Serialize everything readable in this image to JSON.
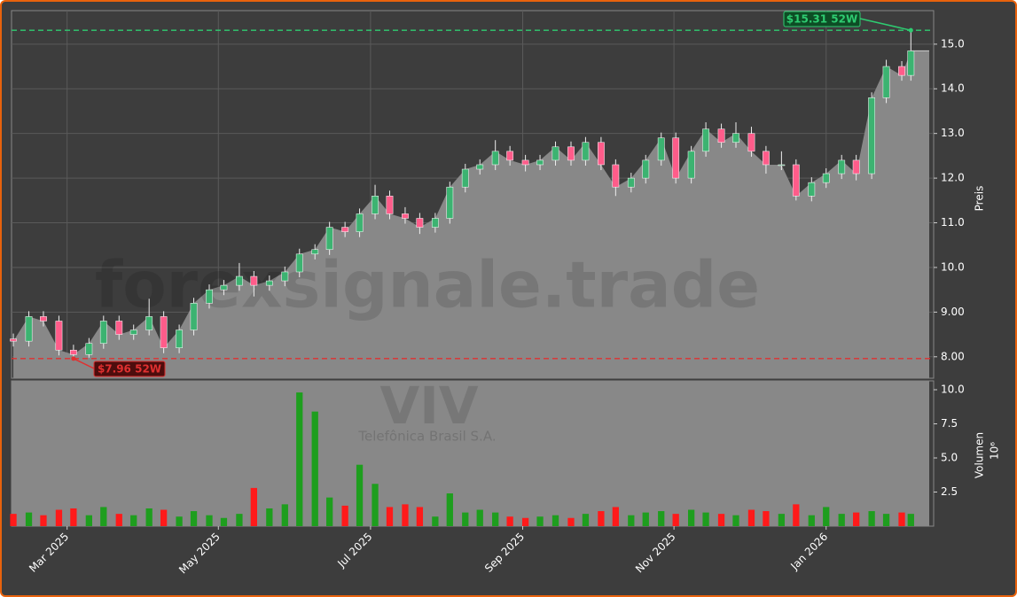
{
  "chart_data": {
    "type": "candlestick",
    "watermark": "forexsignale.trade",
    "symbol": "VIV",
    "company": "Telefônica Brasil S.A.",
    "y_label": "Preis",
    "volume_label": "Volumen",
    "volume_scale_label": "10⁶",
    "x": [
      2025.108,
      2025.125,
      2025.141,
      2025.158,
      2025.174,
      2025.191,
      2025.207,
      2025.224,
      2025.24,
      2025.257,
      2025.273,
      2025.29,
      2025.306,
      2025.323,
      2025.339,
      2025.356,
      2025.372,
      2025.389,
      2025.406,
      2025.422,
      2025.439,
      2025.455,
      2025.472,
      2025.488,
      2025.505,
      2025.521,
      2025.538,
      2025.554,
      2025.571,
      2025.587,
      2025.604,
      2025.62,
      2025.637,
      2025.653,
      2025.67,
      2025.686,
      2025.703,
      2025.72,
      2025.736,
      2025.753,
      2025.769,
      2025.786,
      2025.802,
      2025.819,
      2025.835,
      2025.852,
      2025.868,
      2025.885,
      2025.901,
      2025.918,
      2025.934,
      2025.951,
      2025.967,
      2025.984,
      2026.0,
      2026.017,
      2026.033,
      2026.05,
      2026.066,
      2026.083,
      2026.093
    ],
    "open": [
      8.4,
      8.35,
      8.9,
      8.8,
      8.15,
      8.05,
      8.3,
      8.8,
      8.5,
      8.6,
      8.9,
      8.2,
      8.6,
      9.2,
      9.5,
      9.6,
      9.8,
      9.6,
      9.7,
      9.9,
      10.3,
      10.4,
      10.9,
      10.8,
      11.2,
      11.6,
      11.2,
      11.1,
      10.9,
      11.1,
      11.8,
      12.2,
      12.3,
      12.6,
      12.4,
      12.3,
      12.4,
      12.7,
      12.4,
      12.8,
      12.3,
      11.8,
      12.0,
      12.4,
      12.9,
      12.0,
      12.6,
      13.1,
      12.8,
      13.0,
      12.6,
      12.3,
      12.3,
      11.6,
      11.9,
      12.1,
      12.4,
      12.1,
      13.8,
      14.5,
      14.3
    ],
    "high": [
      8.52,
      9.02,
      9.02,
      8.92,
      8.27,
      8.42,
      8.92,
      8.92,
      8.72,
      9.3,
      9.02,
      8.72,
      9.32,
      9.62,
      9.72,
      10.1,
      9.92,
      9.82,
      10.02,
      10.42,
      10.52,
      11.02,
      11.02,
      11.32,
      11.85,
      11.72,
      11.35,
      11.22,
      11.22,
      11.92,
      12.32,
      12.42,
      12.85,
      12.72,
      12.52,
      12.52,
      12.82,
      12.82,
      12.92,
      12.92,
      12.42,
      12.12,
      12.52,
      13.02,
      13.02,
      12.72,
      13.25,
      13.22,
      13.25,
      13.15,
      12.72,
      12.6,
      12.42,
      12.02,
      12.22,
      12.52,
      12.52,
      13.92,
      14.65,
      14.62,
      15.31
    ],
    "low": [
      8.23,
      8.23,
      8.68,
      8.03,
      7.96,
      7.98,
      8.18,
      8.38,
      8.38,
      8.48,
      8.08,
      8.08,
      8.48,
      9.08,
      9.38,
      9.48,
      9.35,
      9.48,
      9.58,
      9.78,
      10.18,
      10.28,
      10.68,
      10.68,
      11.08,
      11.08,
      10.98,
      10.75,
      10.78,
      10.98,
      11.68,
      12.08,
      12.18,
      12.28,
      12.15,
      12.18,
      12.28,
      12.28,
      12.28,
      12.18,
      11.6,
      11.68,
      11.88,
      12.28,
      11.88,
      11.88,
      12.48,
      12.68,
      12.68,
      12.48,
      12.1,
      12.18,
      11.5,
      11.48,
      11.78,
      11.98,
      11.95,
      11.98,
      13.68,
      14.18,
      14.18
    ],
    "close": [
      8.35,
      8.9,
      8.8,
      8.15,
      8.05,
      8.3,
      8.8,
      8.5,
      8.6,
      8.9,
      8.2,
      8.6,
      9.2,
      9.5,
      9.6,
      9.8,
      9.6,
      9.7,
      9.9,
      10.3,
      10.4,
      10.9,
      10.8,
      11.2,
      11.6,
      11.2,
      11.1,
      10.9,
      11.1,
      11.8,
      12.2,
      12.3,
      12.6,
      12.4,
      12.3,
      12.4,
      12.7,
      12.4,
      12.8,
      12.3,
      11.8,
      12.0,
      12.4,
      12.9,
      12.0,
      12.6,
      13.1,
      12.8,
      13.0,
      12.6,
      12.3,
      12.3,
      11.6,
      11.9,
      12.1,
      12.4,
      12.1,
      13.8,
      14.5,
      14.3,
      14.85
    ],
    "volume": [
      0.9,
      1.0,
      0.8,
      1.2,
      1.3,
      0.8,
      1.4,
      0.9,
      0.8,
      1.3,
      1.2,
      0.7,
      1.1,
      0.8,
      0.6,
      0.9,
      2.8,
      1.3,
      1.6,
      9.8,
      8.4,
      2.1,
      1.5,
      4.5,
      3.1,
      1.4,
      1.6,
      1.4,
      0.7,
      2.4,
      1.0,
      1.2,
      1.0,
      0.7,
      0.6,
      0.7,
      0.8,
      0.6,
      0.9,
      1.1,
      1.4,
      0.8,
      1.0,
      1.1,
      0.9,
      1.2,
      1.0,
      0.9,
      0.8,
      1.2,
      1.1,
      0.9,
      1.6,
      0.8,
      1.4,
      0.9,
      1.0,
      1.1,
      0.9,
      1.0,
      0.9
    ],
    "up_color": "#3cb371",
    "down_color": "#ff5c8a",
    "volume_up_color": "#1e9e1e",
    "volume_down_color": "#ff1a1a",
    "area_color": "#888888",
    "xlim": [
      2025.106,
      2026.118
    ],
    "xticks": [
      {
        "value": 2025.167,
        "label": "Mar 2025"
      },
      {
        "value": 2025.333,
        "label": "May 2025"
      },
      {
        "value": 2025.5,
        "label": "Jul 2025"
      },
      {
        "value": 2025.667,
        "label": "Sep 2025"
      },
      {
        "value": 2025.833,
        "label": "Nov 2025"
      },
      {
        "value": 2026.0,
        "label": "Jan 2026"
      }
    ],
    "ylim": [
      7.52,
      15.75
    ],
    "yticks": [
      {
        "value": 8,
        "label": "8.00"
      },
      {
        "value": 9,
        "label": "9.00"
      },
      {
        "value": 10,
        "label": "10.0"
      },
      {
        "value": 11,
        "label": "11.0"
      },
      {
        "value": 12,
        "label": "12.0"
      },
      {
        "value": 13,
        "label": "13.0"
      },
      {
        "value": 14,
        "label": "14.0"
      },
      {
        "value": 15,
        "label": "15.0"
      }
    ],
    "volume_ylim": [
      0,
      10.65
    ],
    "volume_yticks": [
      2.5,
      {
        "value": 5,
        "label": "5.0"
      },
      7.5,
      {
        "value": 10,
        "label": "10.0"
      }
    ],
    "grid": true,
    "hlines": [
      {
        "value": 15.31,
        "label": "$15.31 52W",
        "color": "#2ecc71"
      },
      {
        "value": 7.96,
        "label": "$7.96 52W",
        "color": "#e03030"
      }
    ]
  }
}
